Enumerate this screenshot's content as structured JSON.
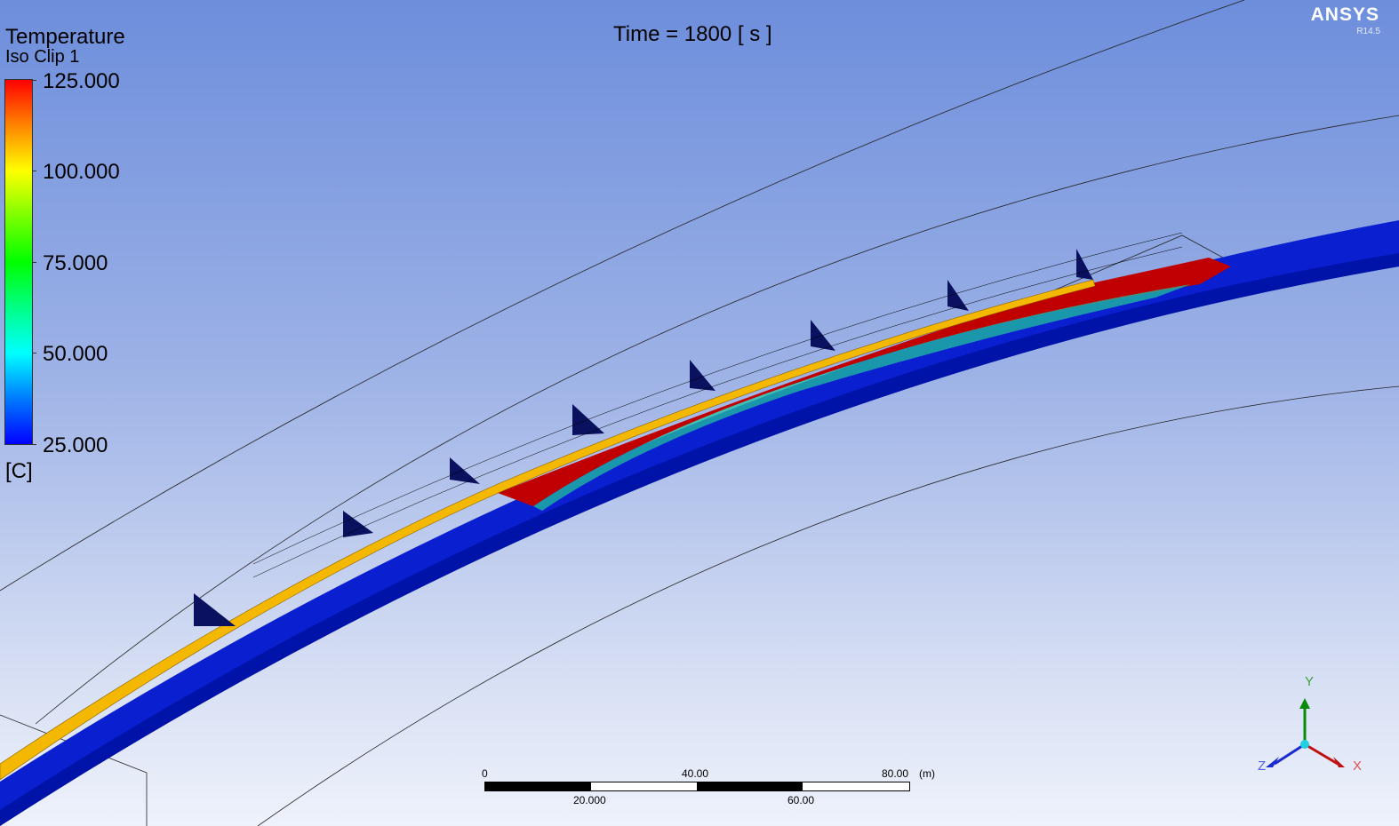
{
  "legend": {
    "variable": "Temperature",
    "location": "Iso Clip 1",
    "ticks": [
      "125.000",
      "100.000",
      "75.000",
      "50.000",
      "25.000"
    ],
    "unit": "[C]",
    "range": [
      25,
      125
    ]
  },
  "time_label": "Time = 1800 [ s ]",
  "logo": {
    "name": "ANSYS",
    "version": "R14.5"
  },
  "scale": {
    "top_labels": [
      "0",
      "40.00",
      "80.00"
    ],
    "unit": "(m)",
    "bottom_labels": [
      "20.000",
      "60.00"
    ]
  },
  "axes": {
    "y": "Y",
    "x": "X",
    "z": "Z"
  },
  "colors": {
    "hot": "#c00000",
    "cold": "#0a1fd0",
    "heater": "#f5b800"
  }
}
